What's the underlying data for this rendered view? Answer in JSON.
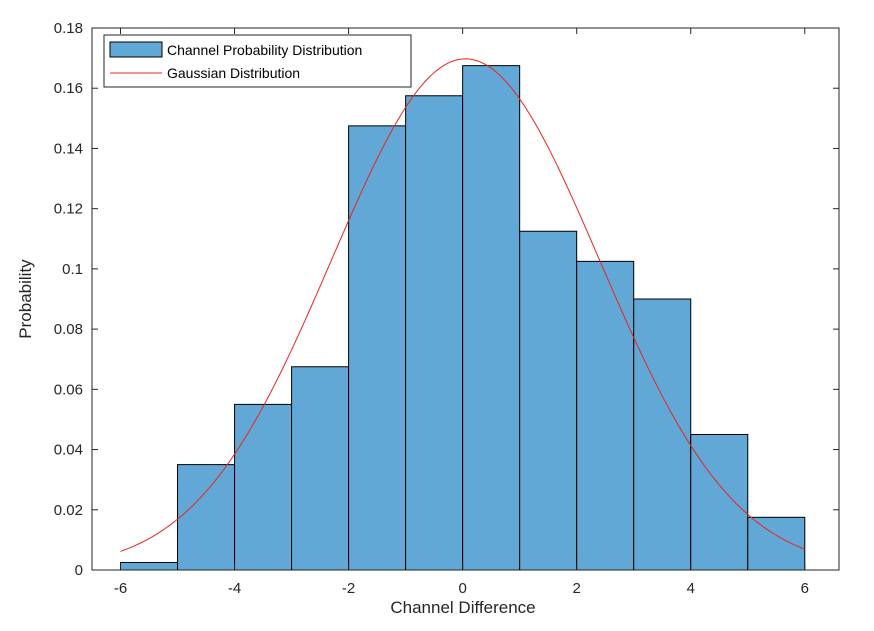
{
  "chart_data": {
    "type": "bar",
    "title": "",
    "xlabel": "Channel Difference",
    "ylabel": "Probability",
    "xlim": [
      -6.5,
      6.6
    ],
    "ylim": [
      0,
      0.18
    ],
    "xticks": [
      -6,
      -4,
      -2,
      0,
      2,
      4,
      6
    ],
    "xtick_labels": [
      "-6",
      "-4",
      "-2",
      "0",
      "2",
      "4",
      "6"
    ],
    "yticks": [
      0,
      0.02,
      0.04,
      0.06,
      0.08,
      0.1,
      0.12,
      0.14,
      0.16,
      0.18
    ],
    "ytick_labels": [
      "0",
      "0.02",
      "0.04",
      "0.06",
      "0.08",
      "0.1",
      "0.12",
      "0.14",
      "0.16",
      "0.18"
    ],
    "grid": false,
    "legend_position": "top-left",
    "series": [
      {
        "name": "Channel Probability Distribution",
        "type": "histogram",
        "color": "#62a8d7",
        "edge_color": "#000000",
        "bin_edges": [
          -6,
          -5,
          -4,
          -3,
          -2,
          -1,
          0,
          1,
          2,
          3,
          4,
          5,
          6
        ],
        "values": [
          0.0025,
          0.035,
          0.055,
          0.0675,
          0.1475,
          0.1575,
          0.1675,
          0.1125,
          0.1025,
          0.09,
          0.045,
          0.0175
        ]
      },
      {
        "name": "Gaussian Distribution",
        "type": "line",
        "color": "#e8251f",
        "mean": 0.05,
        "std": 2.35,
        "x_range": [
          -6,
          6
        ]
      }
    ]
  }
}
